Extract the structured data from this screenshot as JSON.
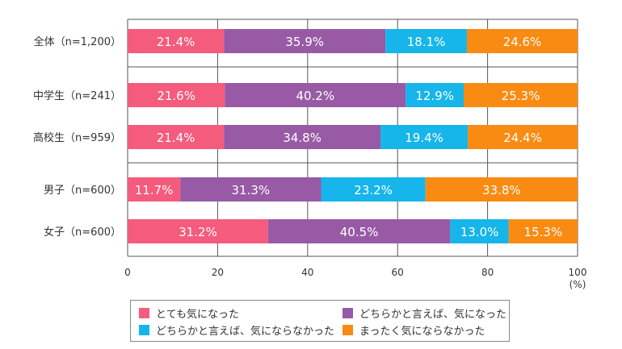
{
  "chart_data": {
    "type": "bar",
    "orientation": "horizontal",
    "stacked": true,
    "categories": [
      "全体（n=1,200）",
      "中学生（n=241）",
      "高校生（n=959）",
      "男子（n=600）",
      "女子（n=600）"
    ],
    "series": [
      {
        "name": "とても気になった",
        "color": "#f45b7d",
        "values": [
          21.4,
          21.6,
          21.4,
          11.7,
          31.2
        ],
        "labels": [
          "21.4%",
          "21.6%",
          "21.4%",
          "11.7%",
          "31.2%"
        ]
      },
      {
        "name": "どちらかと言えば、気になった",
        "color": "#985aa5",
        "values": [
          35.9,
          40.2,
          34.8,
          31.3,
          40.5
        ],
        "labels": [
          "35.9%",
          "40.2%",
          "34.8%",
          "31.3%",
          "40.5%"
        ]
      },
      {
        "name": "どちらかと言えば、気にならなかった",
        "color": "#16b5ea",
        "values": [
          18.1,
          12.9,
          19.4,
          23.2,
          13.0
        ],
        "labels": [
          "18.1%",
          "12.9%",
          "19.4%",
          "23.2%",
          "13.0%"
        ]
      },
      {
        "name": "まったく気にならなかった",
        "color": "#f98b12",
        "values": [
          24.6,
          25.3,
          24.4,
          33.8,
          15.3
        ],
        "labels": [
          "24.6%",
          "25.3%",
          "24.4%",
          "33.8%",
          "15.3%"
        ]
      }
    ],
    "xlim": [
      0,
      100
    ],
    "xticks": [
      "0",
      "20",
      "40",
      "60",
      "80",
      "100"
    ],
    "xunit": "(%)",
    "grid": true,
    "legend_position": "bottom"
  }
}
